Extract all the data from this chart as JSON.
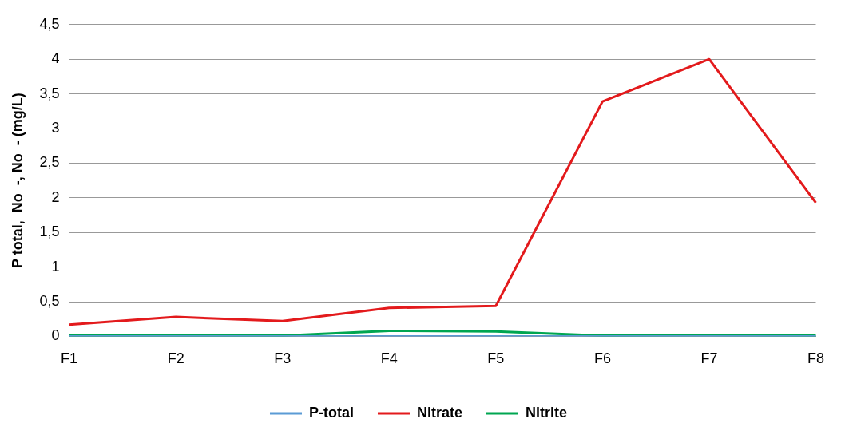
{
  "chart_data": {
    "type": "line",
    "ylabel": "P total,  No  -, No  - (mg/L)",
    "categories": [
      "F1",
      "F2",
      "F3",
      "F4",
      "F5",
      "F6",
      "F7",
      "F8"
    ],
    "series": [
      {
        "name": "P-total",
        "color": "#5b9bd5",
        "values": [
          0,
          0,
          0,
          0,
          0,
          0,
          0,
          0
        ]
      },
      {
        "name": "Nitrate",
        "color": "#e31a1c",
        "values": [
          0.17,
          0.28,
          0.22,
          0.41,
          0.44,
          3.39,
          4.0,
          1.93
        ]
      },
      {
        "name": "Nitrite",
        "color": "#00a651",
        "values": [
          0.01,
          0.01,
          0.01,
          0.08,
          0.07,
          0.01,
          0.02,
          0.01
        ]
      }
    ],
    "ylim": [
      0,
      4.5
    ],
    "yticks": [
      {
        "value": 0,
        "label": "0"
      },
      {
        "value": 0.5,
        "label": "0,5"
      },
      {
        "value": 1,
        "label": "1"
      },
      {
        "value": 1.5,
        "label": "1,5"
      },
      {
        "value": 2,
        "label": "2"
      },
      {
        "value": 2.5,
        "label": "2,5"
      },
      {
        "value": 3,
        "label": "3"
      },
      {
        "value": 3.5,
        "label": "3,5"
      },
      {
        "value": 4,
        "label": "4"
      },
      {
        "value": 4.5,
        "label": "4,5"
      }
    ],
    "grid": "y",
    "legend": "bottom",
    "marker": "none",
    "line_style": "solid"
  }
}
